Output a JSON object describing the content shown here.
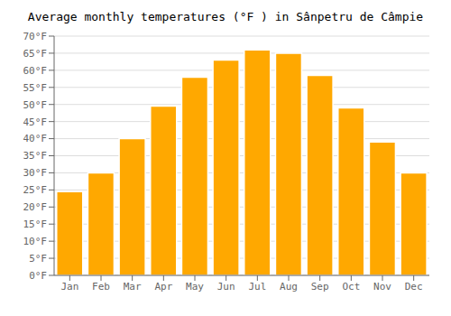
{
  "chart_data": {
    "type": "bar",
    "title": "Average monthly temperatures (°F ) in Sânpetru de Câmpie",
    "categories": [
      "Jan",
      "Feb",
      "Mar",
      "Apr",
      "May",
      "Jun",
      "Jul",
      "Aug",
      "Sep",
      "Oct",
      "Nov",
      "Dec"
    ],
    "values": [
      24.5,
      30.0,
      40.0,
      49.5,
      58.0,
      63.0,
      66.0,
      65.0,
      58.5,
      49.0,
      39.0,
      30.0
    ],
    "color": "#FFA800",
    "ylim": [
      0,
      70
    ],
    "yticks": [
      {
        "value": 0,
        "label": "0°F"
      },
      {
        "value": 5,
        "label": "5°F"
      },
      {
        "value": 10,
        "label": "10°F"
      },
      {
        "value": 15,
        "label": "15°F"
      },
      {
        "value": 20,
        "label": "20°F"
      },
      {
        "value": 25,
        "label": "25°F"
      },
      {
        "value": 30,
        "label": "30°F"
      },
      {
        "value": 35,
        "label": "35°F"
      },
      {
        "value": 40,
        "label": "40°F"
      },
      {
        "value": 45,
        "label": "45°F"
      },
      {
        "value": 50,
        "label": "50°F"
      },
      {
        "value": 55,
        "label": "55°F"
      },
      {
        "value": 60,
        "label": "60°F"
      },
      {
        "value": 65,
        "label": "65°F"
      },
      {
        "value": 70,
        "label": "70°F"
      }
    ],
    "grid": true
  }
}
